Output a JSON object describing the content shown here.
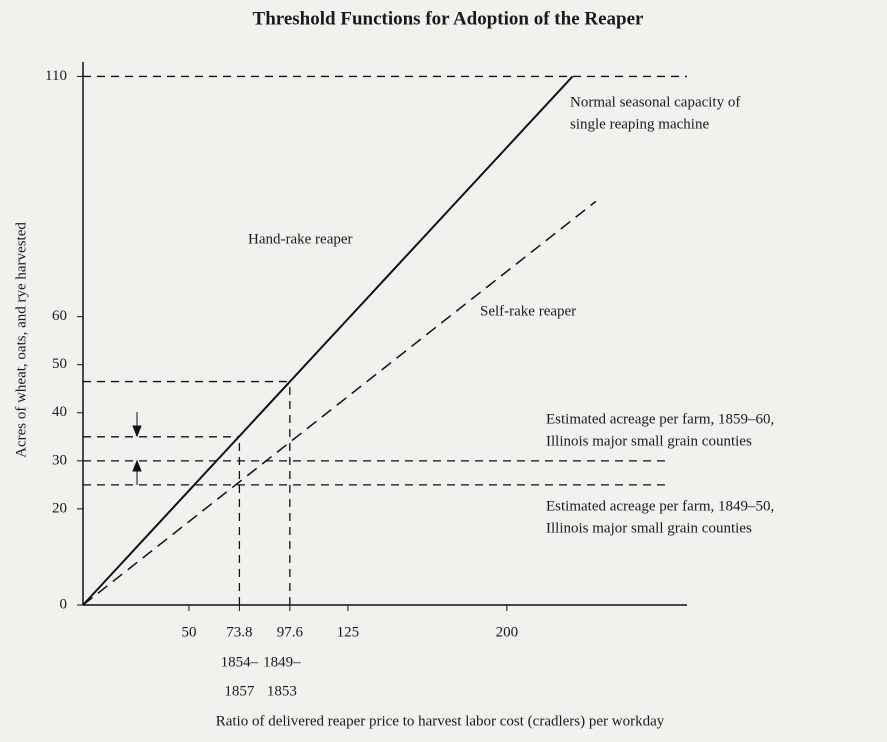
{
  "chart_data": {
    "type": "line",
    "title": "Threshold Functions for Adoption of the Reaper",
    "xlabel": "Ratio of delivered reaper price to harvest labor cost (cradlers) per workday",
    "ylabel": "Acres of wheat, oats, and rye harvested",
    "xlim": [
      0,
      285
    ],
    "ylim": [
      0,
      113
    ],
    "xticks": [
      50,
      73.8,
      97.6,
      125,
      200
    ],
    "yticks": [
      0,
      20,
      30,
      40,
      50,
      60,
      110
    ],
    "series": [
      {
        "name": "Hand-rake reaper",
        "color": "#111111",
        "dash": false,
        "x": [
          0,
          231
        ],
        "values": [
          0,
          110
        ]
      },
      {
        "name": "Self-rake reaper",
        "color": "#111111",
        "dash": true,
        "x": [
          0,
          242
        ],
        "values": [
          0,
          84
        ]
      }
    ],
    "hlines": [
      {
        "y": 110,
        "x": [
          0,
          285
        ]
      },
      {
        "y": 46.5,
        "x": [
          0,
          97.6
        ]
      },
      {
        "y": 35,
        "x": [
          0,
          73.8
        ]
      },
      {
        "y": 30,
        "x": [
          0,
          275
        ]
      },
      {
        "y": 25,
        "x": [
          0,
          275
        ]
      }
    ],
    "vlines": [
      {
        "x": 73.8,
        "y": [
          0,
          35
        ]
      },
      {
        "x": 97.6,
        "y": [
          0,
          46.5
        ]
      }
    ],
    "annotations": [
      [
        "Normal seasonal capacity of",
        "single reaping machine"
      ],
      [
        "Estimated acreage per farm, 1859–60,",
        "Illinois major small grain counties"
      ],
      [
        "Estimated acreage per farm, 1849–50,",
        "Illinois major small grain counties"
      ],
      [
        "1854–",
        "1857"
      ],
      [
        "1849–",
        "1853"
      ]
    ]
  }
}
